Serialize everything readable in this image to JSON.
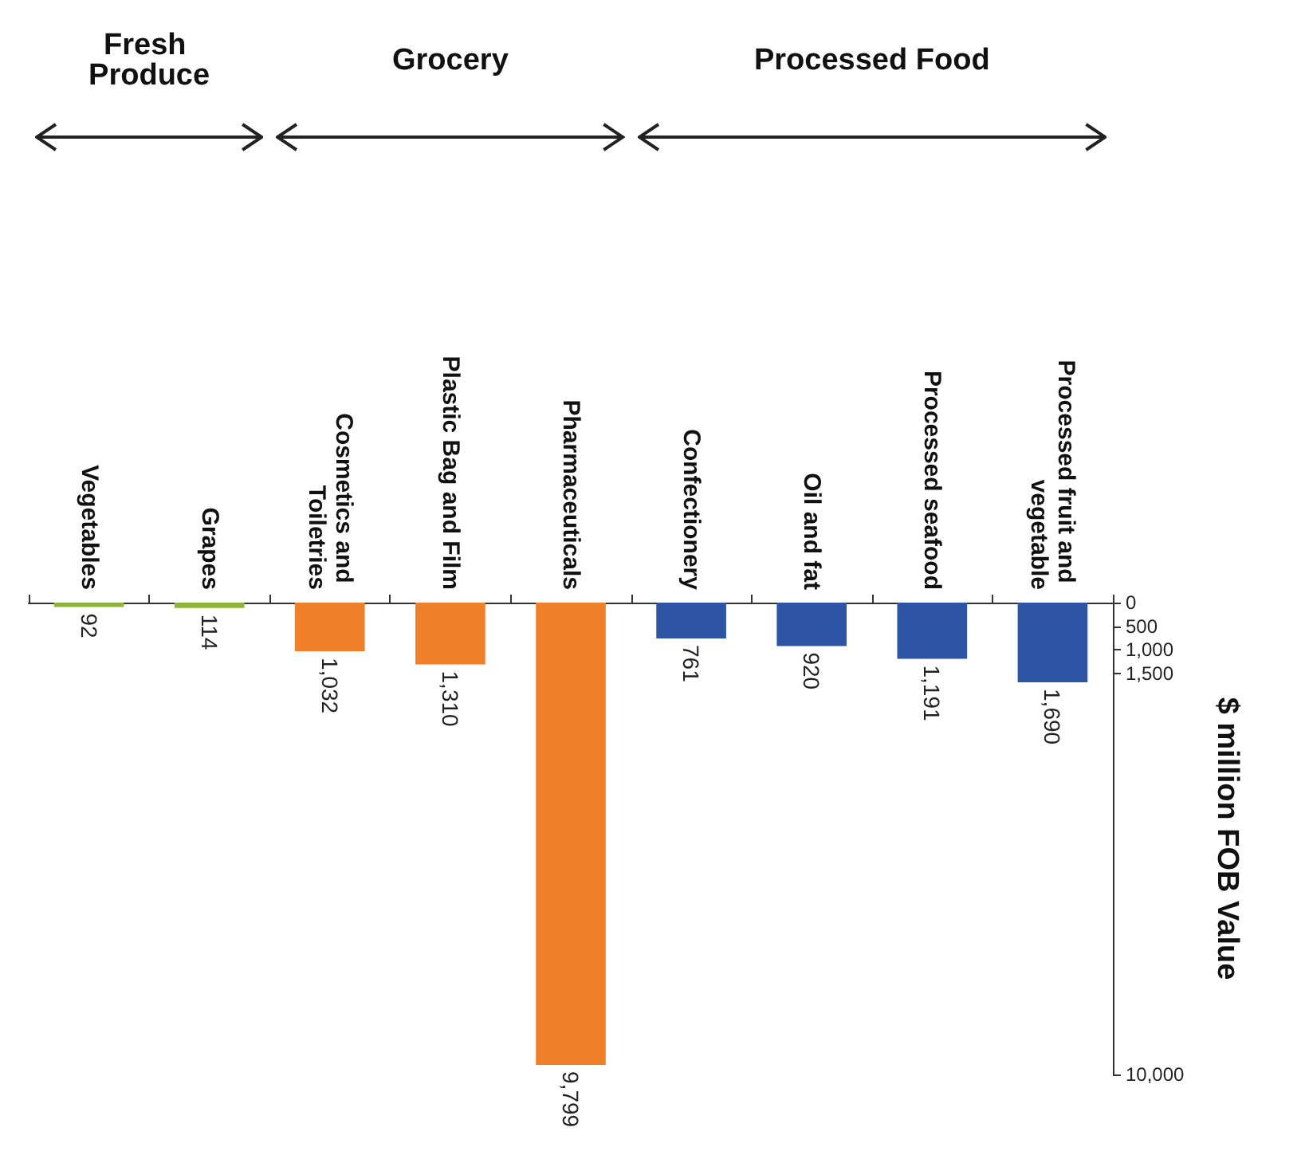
{
  "chart_data": {
    "type": "bar",
    "categories": [
      "Vegetables",
      "Grapes",
      "Cosmetics and Toiletries",
      "Plastic Bag and Film",
      "Pharmaceuticals",
      "Confectionery",
      "Oil and fat",
      "Processed seafood",
      "Processed fruit and vegetable"
    ],
    "values": [
      92,
      114,
      1032,
      1310,
      9799,
      761,
      920,
      1191,
      1690
    ],
    "value_labels": [
      "92",
      "114",
      "1,032",
      "1,310",
      "9,799",
      "761",
      "920",
      "1,191",
      "1,690"
    ],
    "colors": [
      "#8db33a",
      "#8db33a",
      "#f07f2a",
      "#f07f2a",
      "#f07f2a",
      "#2e55a5",
      "#2e55a5",
      "#2e55a5",
      "#2e55a5"
    ],
    "ylabel": "$ million FOB Value",
    "ylim": [
      10000,
      0
    ],
    "yticks": [
      0,
      500,
      {
        "value": 1000,
        "label": "1,000"
      },
      {
        "value": 1500,
        "label": "1,500"
      },
      {
        "value": 10000,
        "label": "10,000"
      }
    ],
    "grid": false,
    "annotations": [
      "Fresh Produce",
      "Grocery",
      "Processed Food"
    ]
  }
}
